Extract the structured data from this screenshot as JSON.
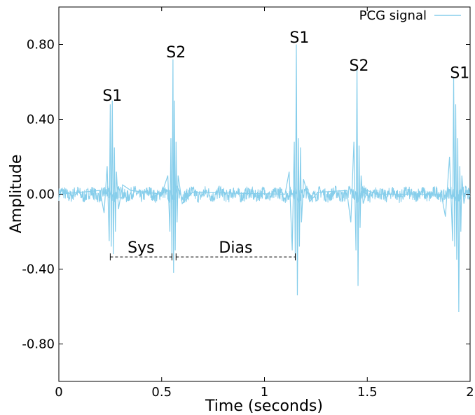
{
  "chart_data": {
    "type": "line",
    "xlabel": "Time (seconds)",
    "ylabel": "Amplitude",
    "xlim": [
      0,
      2
    ],
    "ylim": [
      -1.0,
      1.0
    ],
    "x_ticks": [
      {
        "value": 0,
        "label": "0"
      },
      {
        "value": 0.5,
        "label": "0.5"
      },
      {
        "value": 1,
        "label": "1"
      },
      {
        "value": 1.5,
        "label": "1.5"
      },
      {
        "value": 2,
        "label": "2"
      }
    ],
    "y_ticks": [
      {
        "value": 0.8,
        "label": "0.80"
      },
      {
        "value": 0.4,
        "label": "0.40"
      },
      {
        "value": 0.0,
        "label": "0.00"
      },
      {
        "value": -0.4,
        "label": "-0.40"
      },
      {
        "value": -0.8,
        "label": "-0.80"
      }
    ],
    "grid": false,
    "legend_position": "top-right",
    "series": [
      {
        "name": "PCG signal",
        "color": "#87ceeb",
        "x": [
          0.0,
          0.2,
          0.22,
          0.235,
          0.245,
          0.25,
          0.255,
          0.26,
          0.265,
          0.27,
          0.275,
          0.28,
          0.29,
          0.31,
          0.35,
          0.5,
          0.53,
          0.54,
          0.545,
          0.55,
          0.555,
          0.558,
          0.562,
          0.566,
          0.57,
          0.575,
          0.58,
          0.6,
          0.65,
          1.1,
          1.12,
          1.135,
          1.145,
          1.15,
          1.155,
          1.16,
          1.165,
          1.17,
          1.175,
          1.18,
          1.19,
          1.22,
          1.26,
          1.4,
          1.42,
          1.435,
          1.445,
          1.45,
          1.455,
          1.46,
          1.465,
          1.47,
          1.48,
          1.5,
          1.55,
          1.86,
          1.88,
          1.9,
          1.915,
          1.92,
          1.925,
          1.93,
          1.935,
          1.94,
          1.945,
          1.95,
          1.955,
          1.96,
          1.97,
          1.98,
          2.0
        ],
        "y": [
          0.0,
          0.02,
          -0.1,
          0.15,
          -0.25,
          0.48,
          -0.28,
          0.5,
          -0.32,
          0.25,
          -0.2,
          0.12,
          -0.08,
          0.05,
          0.02,
          0.0,
          0.1,
          -0.2,
          0.3,
          -0.35,
          0.72,
          -0.42,
          0.5,
          -0.3,
          0.28,
          -0.15,
          0.1,
          -0.05,
          0.01,
          0.0,
          0.12,
          -0.3,
          0.28,
          -0.35,
          0.8,
          -0.54,
          0.3,
          -0.28,
          0.25,
          -0.15,
          0.08,
          -0.04,
          0.01,
          0.02,
          -0.15,
          0.28,
          -0.3,
          0.68,
          -0.49,
          0.26,
          -0.18,
          0.1,
          -0.05,
          0.02,
          0.0,
          0.0,
          -0.12,
          0.2,
          -0.25,
          0.62,
          -0.28,
          0.48,
          -0.35,
          0.3,
          -0.63,
          0.15,
          -0.2,
          0.1,
          -0.05,
          0.02,
          0.0
        ]
      }
    ],
    "annotations": [
      {
        "text": "S1",
        "x": 0.26,
        "y": 0.5
      },
      {
        "text": "S2",
        "x": 0.57,
        "y": 0.73
      },
      {
        "text": "S1",
        "x": 1.17,
        "y": 0.81
      },
      {
        "text": "S2",
        "x": 1.46,
        "y": 0.66
      },
      {
        "text": "S1",
        "x": 1.95,
        "y": 0.62
      }
    ],
    "intervals": [
      {
        "label": "Sys",
        "x_start": 0.25,
        "x_end": 0.55,
        "y": -0.335
      },
      {
        "label": "Dias",
        "x_start": 0.57,
        "x_end": 1.15,
        "y": -0.335
      }
    ]
  }
}
